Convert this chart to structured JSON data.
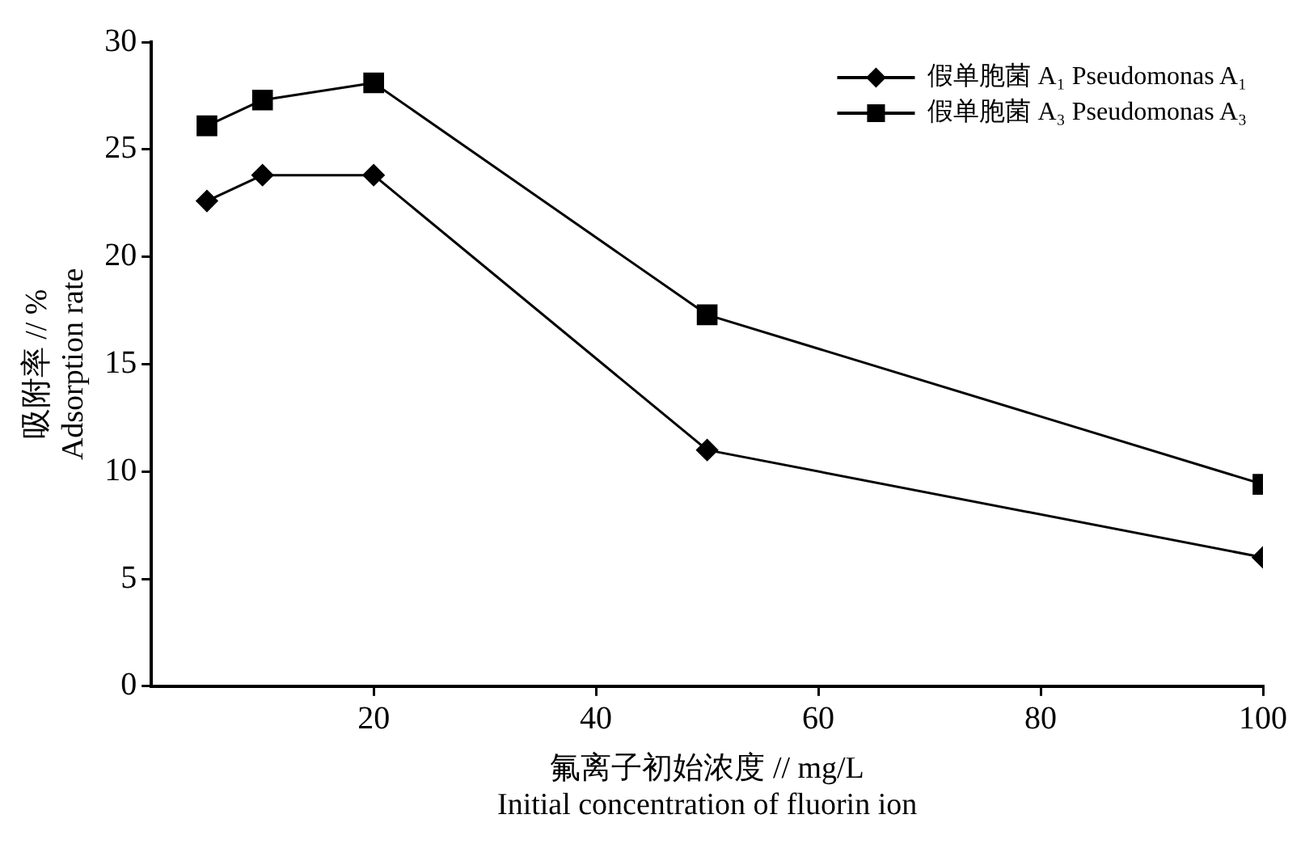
{
  "chart_data": {
    "type": "line",
    "xlabel": "氟离子初始浓度 // mg/L\nInitial concentration of fluorin ion",
    "ylabel": "吸附率 // %\nAdsorption rate",
    "x": [
      5,
      10,
      20,
      50,
      100
    ],
    "series": [
      {
        "name": "假单胞菌 A₁ Pseudomonas A₁",
        "color": "#000000",
        "marker": "diamond",
        "values": [
          22.6,
          23.8,
          23.8,
          11.0,
          6.0
        ]
      },
      {
        "name": "假单胞菌 A₃ Pseudomonas A₃",
        "color": "#000000",
        "marker": "square",
        "values": [
          26.1,
          27.3,
          28.1,
          17.3,
          9.4
        ]
      }
    ],
    "xlim": [
      0,
      100
    ],
    "xticks": [
      20,
      40,
      60,
      80,
      100
    ],
    "ylim": [
      0,
      30
    ],
    "yticks": [
      0,
      5,
      10,
      15,
      20,
      25,
      30
    ],
    "grid": false,
    "legend": "top right",
    "line_style": "solid"
  }
}
